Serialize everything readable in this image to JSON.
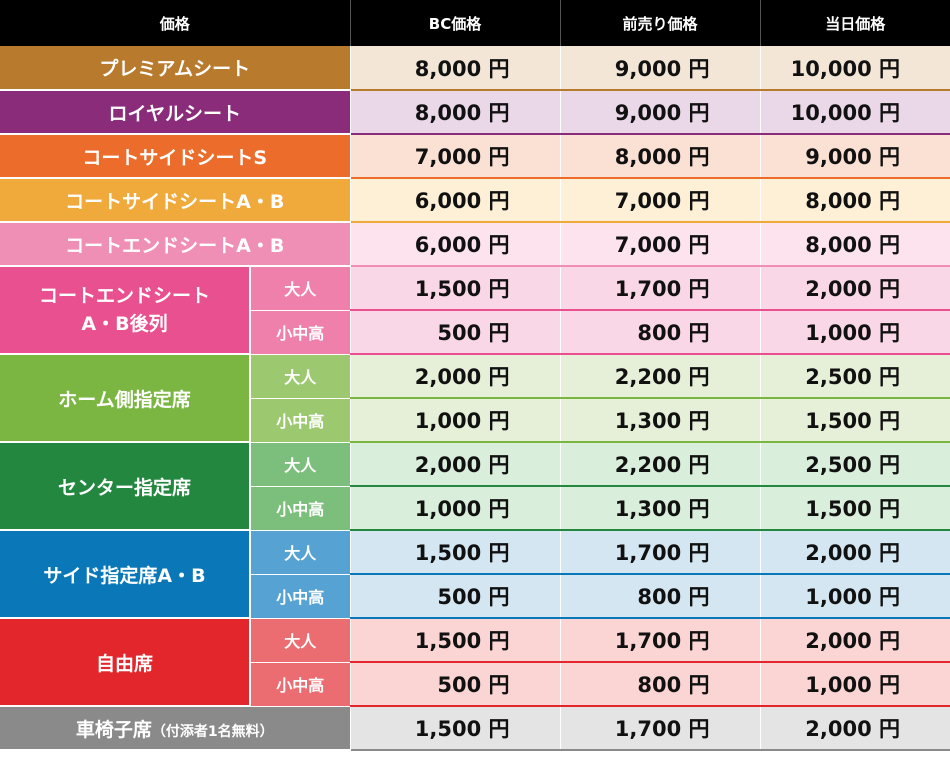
{
  "headers": [
    "価格",
    "BC価格",
    "前売り価格",
    "当日価格"
  ],
  "rows": [
    {
      "seat": "プレミアムシート",
      "color": "#b87a2c",
      "bg": "#f3e6d6",
      "line": "#b87a2c",
      "prices": [
        [
          "8,000 円",
          "9,000 円",
          "10,000 円"
        ]
      ]
    },
    {
      "seat": "ロイヤルシート",
      "color": "#8b2c7b",
      "bg": "#ead7e8",
      "line": "#8b2c7b",
      "prices": [
        [
          "8,000 円",
          "9,000 円",
          "10,000 円"
        ]
      ]
    },
    {
      "seat": "コートサイドシートS",
      "color": "#ec6d2b",
      "bg": "#fbe1d3",
      "line": "#ec6d2b",
      "prices": [
        [
          "7,000 円",
          "8,000 円",
          "9,000 円"
        ]
      ]
    },
    {
      "seat": "コートサイドシートA・B",
      "color": "#f0a93b",
      "bg": "#fdf0d6",
      "line": "#f0a93b",
      "prices": [
        [
          "6,000 円",
          "7,000 円",
          "8,000 円"
        ]
      ]
    },
    {
      "seat": "コートエンドシートA・B",
      "color": "#f08fb5",
      "bg": "#fde3ee",
      "line": "#f08fb5",
      "prices": [
        [
          "6,000 円",
          "7,000 円",
          "8,000 円"
        ]
      ]
    },
    {
      "seat_lines": [
        "コートエンドシート",
        "A・B後列"
      ],
      "color": "#e8508f",
      "subcolor": "#ef80ac",
      "bg": "#fad7e6",
      "line": "#e8508f",
      "subs": [
        "大人",
        "小中高"
      ],
      "prices": [
        [
          "1,500 円",
          "1,700 円",
          "2,000 円"
        ],
        [
          "500 円",
          "800 円",
          "1,000 円"
        ]
      ]
    },
    {
      "seat": "ホーム側指定席",
      "color": "#7ab641",
      "subcolor": "#9cc96f",
      "bg": "#e6f0d9",
      "line": "#7ab641",
      "subs": [
        "大人",
        "小中高"
      ],
      "prices": [
        [
          "2,000 円",
          "2,200 円",
          "2,500 円"
        ],
        [
          "1,000 円",
          "1,300 円",
          "1,500 円"
        ]
      ]
    },
    {
      "seat": "センター指定席",
      "color": "#23873f",
      "subcolor": "#7cbf7c",
      "bg": "#d9eedb",
      "line": "#23873f",
      "subs": [
        "大人",
        "小中高"
      ],
      "prices": [
        [
          "2,000 円",
          "2,200 円",
          "2,500 円"
        ],
        [
          "1,000 円",
          "1,300 円",
          "1,500 円"
        ]
      ]
    },
    {
      "seat": "サイド指定席A・B",
      "color": "#0a78b8",
      "subcolor": "#56a3d3",
      "bg": "#d3e6f1",
      "line": "#0a78b8",
      "subs": [
        "大人",
        "小中高"
      ],
      "prices": [
        [
          "1,500 円",
          "1,700 円",
          "2,000 円"
        ],
        [
          "500 円",
          "800 円",
          "1,000 円"
        ]
      ]
    },
    {
      "seat": "自由席",
      "color": "#e2262b",
      "subcolor": "#ec6d71",
      "bg": "#fbd4d4",
      "line": "#e2262b",
      "subs": [
        "大人",
        "小中高"
      ],
      "prices": [
        [
          "1,500 円",
          "1,700 円",
          "2,000 円"
        ],
        [
          "500 円",
          "800 円",
          "1,000 円"
        ]
      ]
    },
    {
      "seat": "車椅子席",
      "note": "（付添者1名無料）",
      "color": "#8a8a8a",
      "bg": "#e4e4e4",
      "line": "#8a8a8a",
      "prices": [
        [
          "1,500 円",
          "1,700 円",
          "2,000 円"
        ]
      ]
    }
  ]
}
